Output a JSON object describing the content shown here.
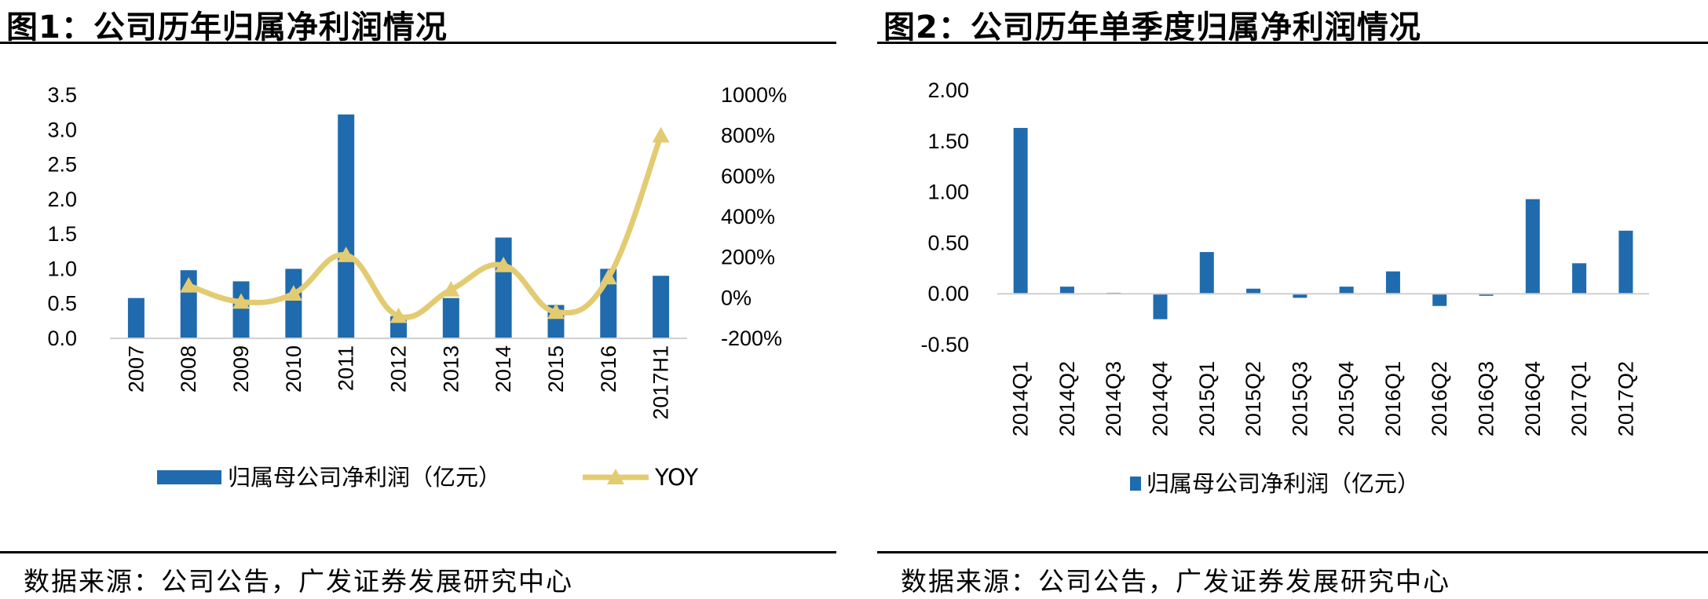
{
  "figures": [
    {
      "title": "图1：公司历年归属净利润情况",
      "source": "数据来源：公司公告，广发证券发展研究中心"
    },
    {
      "title": "图2：公司历年单季度归属净利润情况",
      "source": "数据来源：公司公告，广发证券发展研究中心"
    }
  ],
  "colors": {
    "bar": "#1F6BAE",
    "line": "#E3CB72",
    "axis": "#d0d0d0"
  },
  "chart_data": [
    {
      "type": "bar+line",
      "categories": [
        "2007",
        "2008",
        "2009",
        "2010",
        "2011",
        "2012",
        "2013",
        "2014",
        "2015",
        "2016",
        "2017H1"
      ],
      "series": [
        {
          "name": "归属母公司净利润（亿元）",
          "type": "bar",
          "axis": "left",
          "values": [
            0.58,
            0.98,
            0.82,
            1.0,
            3.22,
            0.32,
            0.58,
            1.45,
            0.48,
            1.0,
            0.9
          ]
        },
        {
          "name": "YOY",
          "type": "line",
          "axis": "right",
          "values": [
            null,
            60,
            -20,
            20,
            210,
            -90,
            40,
            160,
            -70,
            100,
            800
          ]
        }
      ],
      "y_left": {
        "min": 0,
        "max": 3.5,
        "ticks": [
          "0.0",
          "0.5",
          "1.0",
          "1.5",
          "2.0",
          "2.5",
          "3.0",
          "3.5"
        ]
      },
      "y_right": {
        "min": -200,
        "max": 1000,
        "ticks": [
          "-200%",
          "0%",
          "200%",
          "400%",
          "600%",
          "800%",
          "1000%"
        ]
      },
      "grid": false,
      "legend": "bottom"
    },
    {
      "type": "bar",
      "categories": [
        "2014Q1",
        "2014Q2",
        "2014Q3",
        "2014Q4",
        "2015Q1",
        "2015Q2",
        "2015Q3",
        "2015Q4",
        "2016Q1",
        "2016Q2",
        "2016Q3",
        "2016Q4",
        "2017Q1",
        "2017Q2"
      ],
      "series": [
        {
          "name": "归属母公司净利润（亿元）",
          "values": [
            1.63,
            0.07,
            0.01,
            -0.25,
            0.41,
            0.05,
            -0.04,
            0.07,
            0.22,
            -0.12,
            -0.02,
            0.93,
            0.3,
            0.62
          ]
        }
      ],
      "y": {
        "min": -0.5,
        "max": 2.0,
        "ticks": [
          "-0.50",
          "0.00",
          "0.50",
          "1.00",
          "1.50",
          "2.00"
        ]
      },
      "grid": false,
      "legend": "bottom"
    }
  ]
}
